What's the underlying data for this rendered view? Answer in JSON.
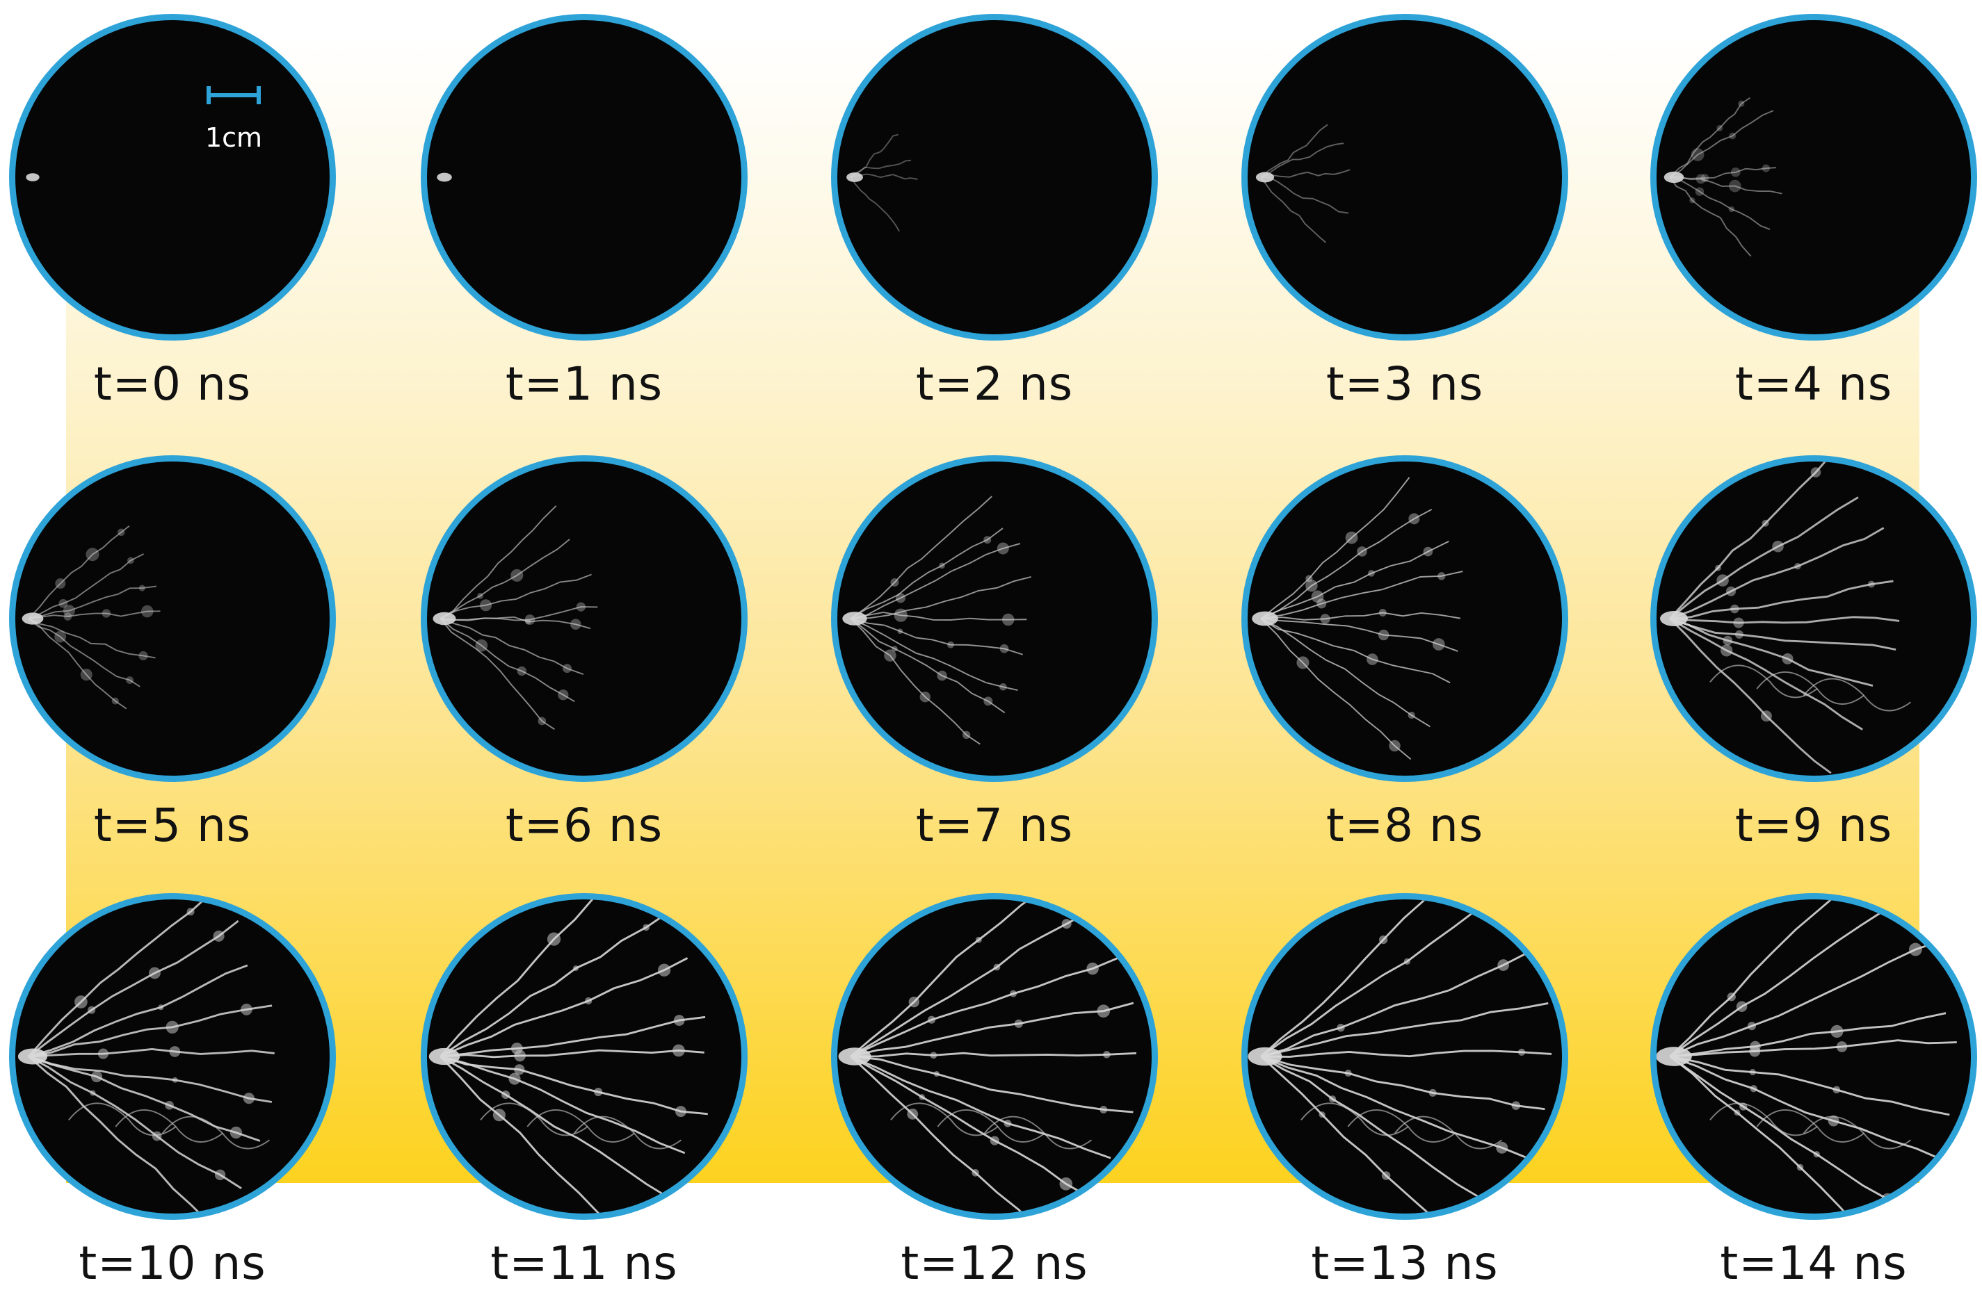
{
  "scale": {
    "label": "1cm"
  },
  "colors": {
    "ring": "#2ea3d8",
    "background_gradient_top": "#ffffff",
    "background_gradient_bottom": "#fdd21f",
    "frame_fill": "#060606"
  },
  "frames": [
    {
      "label": "t=0 ns"
    },
    {
      "label": "t=1 ns"
    },
    {
      "label": "t=2 ns"
    },
    {
      "label": "t=3 ns"
    },
    {
      "label": "t=4 ns"
    },
    {
      "label": "t=5 ns"
    },
    {
      "label": "t=6 ns"
    },
    {
      "label": "t=7 ns"
    },
    {
      "label": "t=8 ns"
    },
    {
      "label": "t=9 ns"
    },
    {
      "label": "t=10 ns"
    },
    {
      "label": "t=11 ns"
    },
    {
      "label": "t=12 ns"
    },
    {
      "label": "t=13 ns"
    },
    {
      "label": "t=14 ns"
    }
  ]
}
